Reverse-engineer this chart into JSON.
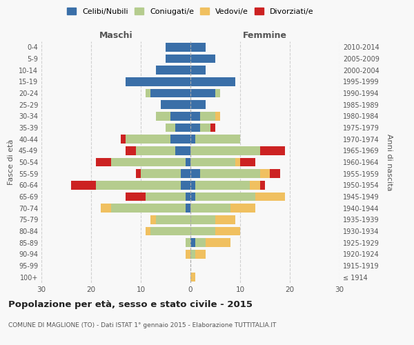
{
  "age_groups": [
    "100+",
    "95-99",
    "90-94",
    "85-89",
    "80-84",
    "75-79",
    "70-74",
    "65-69",
    "60-64",
    "55-59",
    "50-54",
    "45-49",
    "40-44",
    "35-39",
    "30-34",
    "25-29",
    "20-24",
    "15-19",
    "10-14",
    "5-9",
    "0-4"
  ],
  "birth_years": [
    "≤ 1914",
    "1915-1919",
    "1920-1924",
    "1925-1929",
    "1930-1934",
    "1935-1939",
    "1940-1944",
    "1945-1949",
    "1950-1954",
    "1955-1959",
    "1960-1964",
    "1965-1969",
    "1970-1974",
    "1975-1979",
    "1980-1984",
    "1985-1989",
    "1990-1994",
    "1995-1999",
    "2000-2004",
    "2005-2009",
    "2010-2014"
  ],
  "male_celibi": [
    0,
    0,
    0,
    0,
    0,
    0,
    1,
    1,
    2,
    2,
    1,
    3,
    4,
    3,
    4,
    6,
    8,
    13,
    7,
    5,
    5
  ],
  "male_coniugati": [
    0,
    0,
    0,
    1,
    8,
    7,
    15,
    8,
    17,
    8,
    15,
    8,
    9,
    2,
    3,
    0,
    1,
    0,
    0,
    0,
    0
  ],
  "male_vedovi": [
    0,
    0,
    1,
    0,
    1,
    1,
    2,
    0,
    0,
    0,
    0,
    0,
    0,
    0,
    0,
    0,
    0,
    0,
    0,
    0,
    0
  ],
  "male_divorziati": [
    0,
    0,
    0,
    0,
    0,
    0,
    0,
    4,
    5,
    1,
    3,
    2,
    1,
    0,
    0,
    0,
    0,
    0,
    0,
    0,
    0
  ],
  "female_celibi": [
    0,
    0,
    0,
    1,
    0,
    0,
    0,
    1,
    1,
    2,
    0,
    0,
    1,
    2,
    2,
    3,
    5,
    9,
    3,
    5,
    3
  ],
  "female_coniugati": [
    0,
    0,
    1,
    2,
    5,
    5,
    8,
    12,
    11,
    12,
    9,
    14,
    9,
    2,
    3,
    0,
    1,
    0,
    0,
    0,
    0
  ],
  "female_vedovi": [
    1,
    0,
    2,
    5,
    5,
    4,
    5,
    6,
    2,
    2,
    1,
    0,
    0,
    0,
    1,
    0,
    0,
    0,
    0,
    0,
    0
  ],
  "female_divorziati": [
    0,
    0,
    0,
    0,
    0,
    0,
    0,
    0,
    1,
    2,
    3,
    5,
    0,
    1,
    0,
    0,
    0,
    0,
    0,
    0,
    0
  ],
  "colors": {
    "celibi": "#3a6fa8",
    "coniugati": "#b5cc8e",
    "vedovi": "#f0c060",
    "divorziati": "#cc2222"
  },
  "xlim": 30,
  "title": "Popolazione per età, sesso e stato civile - 2015",
  "subtitle": "COMUNE DI MAGLIONE (TO) - Dati ISTAT 1° gennaio 2015 - Elaborazione TUTTITALIA.IT",
  "ylabel_left": "Fasce di età",
  "ylabel_right": "Anni di nascita",
  "xlabel_maschi": "Maschi",
  "xlabel_femmine": "Femmine",
  "background_color": "#f8f8f8"
}
